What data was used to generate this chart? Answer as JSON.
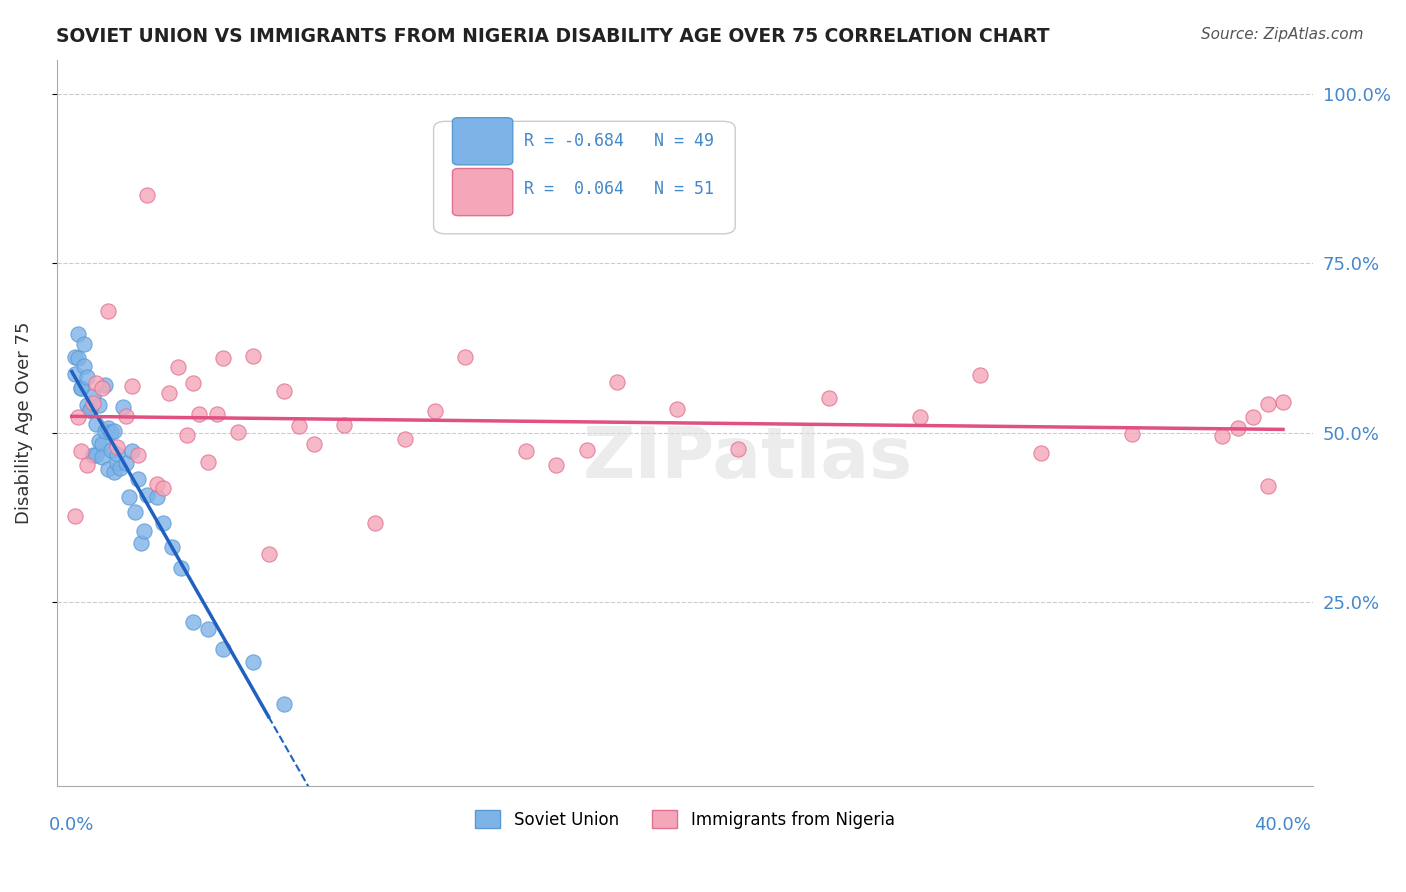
{
  "title": "SOVIET UNION VS IMMIGRANTS FROM NIGERIA DISABILITY AGE OVER 75 CORRELATION CHART",
  "source": "Source: ZipAtlas.com",
  "ylabel": "Disability Age Over 75",
  "watermark": "ZIPatlas",
  "legend_box": {
    "soviet_R": -0.684,
    "soviet_N": 49,
    "nigeria_R": 0.064,
    "nigeria_N": 51
  },
  "right_yticks": [
    "100.0%",
    "75.0%",
    "50.0%",
    "25.0%"
  ],
  "right_ytick_vals": [
    1.0,
    0.75,
    0.5,
    0.25
  ],
  "soviet_color": "#7eb3e8",
  "soviet_edge": "#5a9ad4",
  "nigeria_color": "#f4a7b9",
  "nigeria_edge": "#e07090",
  "trendline_soviet_color": "#2060c0",
  "trendline_nigeria_color": "#e05080",
  "background_color": "#ffffff",
  "grid_color": "#cccccc",
  "title_color": "#222222",
  "axis_label_color": "#4488cc"
}
